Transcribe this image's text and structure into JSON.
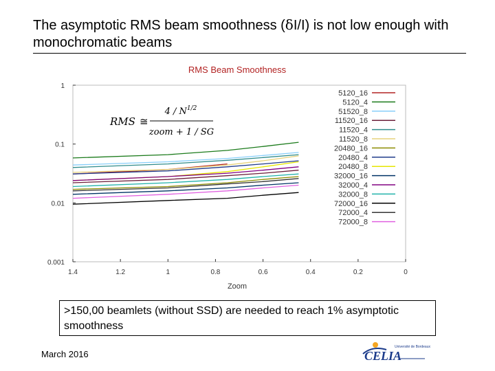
{
  "slide": {
    "title_before": "The asymptotic RMS beam smoothness (",
    "title_symbol": "δ",
    "title_after": "I/I) is not low enough with monochromatic beams",
    "note": ">150,00 beamlets (without SSD) are needed to reach 1% asymptotic smoothness",
    "footer_date": "March 2016",
    "logo_text": "Université de Bordeaux"
  },
  "chart_data": {
    "type": "line",
    "title": "RMS Beam Smoothness",
    "xlabel": "Zoom",
    "ylabel": "",
    "xlim": [
      1.4,
      0
    ],
    "ylim": [
      0.001,
      1
    ],
    "y_scale": "log",
    "x_ticks": [
      "1.4",
      "1.2",
      "1",
      "0.8",
      "0.6",
      "0.4",
      "0.2",
      "0"
    ],
    "y_ticks": [
      "1",
      "0.1",
      "0.01",
      "0.001"
    ],
    "grid": false,
    "legend_position": "top-right",
    "formula": {
      "lhs": "RMS",
      "numerator": "4 / N^{1/2}",
      "denominator": "zoom + 1 / SG"
    },
    "series": [
      {
        "name": "5120_16",
        "color": "#b22222",
        "x": [
          1.4,
          1.0,
          0.75
        ],
        "y": [
          0.031,
          0.037,
          0.046
        ]
      },
      {
        "name": "5120_4",
        "color": "#1a7a1a",
        "x": [
          1.4,
          1.0,
          0.75,
          0.6,
          0.45
        ],
        "y": [
          0.058,
          0.066,
          0.078,
          0.091,
          0.107
        ]
      },
      {
        "name": "51520_8",
        "color": "#87cefa",
        "x": [
          1.4,
          1.0,
          0.75,
          0.6,
          0.45
        ],
        "y": [
          0.044,
          0.05,
          0.057,
          0.064,
          0.072
        ]
      },
      {
        "name": "11520_16",
        "color": "#6b1f3a",
        "x": [
          1.4,
          1.0,
          0.75,
          0.6,
          0.45
        ],
        "y": [
          0.022,
          0.025,
          0.029,
          0.032,
          0.036
        ]
      },
      {
        "name": "11520_4",
        "color": "#2e8b8b",
        "x": [
          1.4,
          1.0,
          0.75,
          0.6,
          0.45
        ],
        "y": [
          0.04,
          0.046,
          0.053,
          0.059,
          0.066
        ]
      },
      {
        "name": "11520_8",
        "color": "#e6d27a",
        "x": [
          1.4,
          1.0,
          0.75,
          0.6,
          0.45
        ],
        "y": [
          0.033,
          0.037,
          0.044,
          0.052,
          0.063
        ]
      },
      {
        "name": "20480_16",
        "color": "#8b8b00",
        "x": [
          1.4,
          1.0,
          0.75,
          0.6,
          0.45
        ],
        "y": [
          0.017,
          0.019,
          0.022,
          0.025,
          0.028
        ]
      },
      {
        "name": "20480_4",
        "color": "#1e3a8a",
        "x": [
          1.4,
          1.0,
          0.75,
          0.6,
          0.45
        ],
        "y": [
          0.031,
          0.035,
          0.041,
          0.046,
          0.052
        ]
      },
      {
        "name": "20480_8",
        "color": "#e6e600",
        "x": [
          1.4,
          1.0,
          0.75,
          0.6,
          0.45
        ],
        "y": [
          0.024,
          0.028,
          0.034,
          0.041,
          0.05
        ]
      },
      {
        "name": "32000_16",
        "color": "#003366",
        "x": [
          1.4,
          1.0,
          0.75,
          0.6,
          0.45
        ],
        "y": [
          0.014,
          0.016,
          0.018,
          0.02,
          0.022
        ]
      },
      {
        "name": "32000_4",
        "color": "#800080",
        "x": [
          1.4,
          1.0,
          0.75,
          0.6,
          0.45
        ],
        "y": [
          0.024,
          0.028,
          0.032,
          0.036,
          0.041
        ]
      },
      {
        "name": "32000_8",
        "color": "#20b2aa",
        "x": [
          1.4,
          1.0,
          0.75,
          0.6,
          0.45
        ],
        "y": [
          0.019,
          0.022,
          0.025,
          0.028,
          0.031
        ]
      },
      {
        "name": "72000_16",
        "color": "#000000",
        "x": [
          1.4,
          1.0,
          0.75,
          0.6,
          0.45
        ],
        "y": [
          0.0095,
          0.011,
          0.012,
          0.0135,
          0.015
        ]
      },
      {
        "name": "72000_4",
        "color": "#333333",
        "x": [
          1.4,
          1.0,
          0.75,
          0.6,
          0.45
        ],
        "y": [
          0.016,
          0.018,
          0.021,
          0.023,
          0.026
        ]
      },
      {
        "name": "72000_8",
        "color": "#e060e0",
        "x": [
          1.4,
          1.0,
          0.75,
          0.6,
          0.45
        ],
        "y": [
          0.012,
          0.014,
          0.016,
          0.018,
          0.02
        ]
      }
    ]
  }
}
